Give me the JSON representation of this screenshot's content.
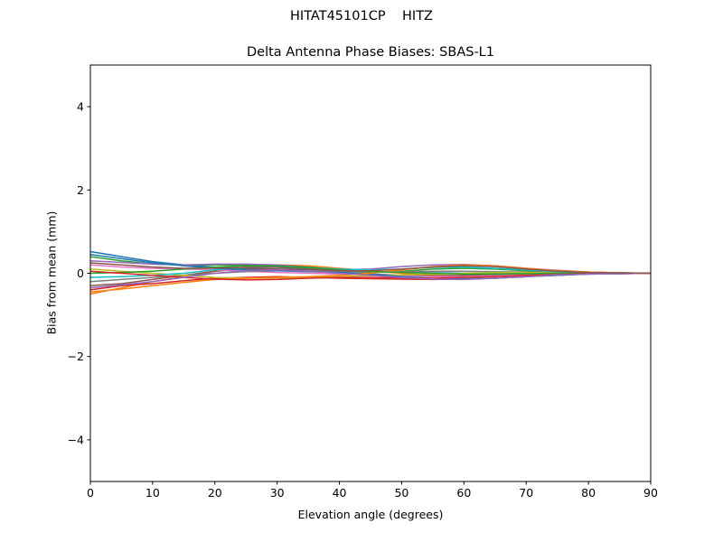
{
  "figure": {
    "suptitle": "HITAT45101CP    HITZ"
  },
  "chart_data": {
    "type": "line",
    "title": "Delta Antenna Phase Biases: SBAS-L1",
    "xlabel": "Elevation angle (degrees)",
    "ylabel": "Bias from mean (mm)",
    "xlim": [
      0,
      90
    ],
    "ylim": [
      -5,
      5
    ],
    "xticks": [
      0,
      10,
      20,
      30,
      40,
      50,
      60,
      70,
      80,
      90
    ],
    "yticks": [
      -4,
      -2,
      0,
      2,
      4
    ],
    "ytick_labels": [
      "−4",
      "−2",
      "0",
      "2",
      "4"
    ],
    "grid": false,
    "colors": [
      "#1f77b4",
      "#ff7f0e",
      "#2ca02c",
      "#d62728",
      "#9467bd",
      "#8c564b",
      "#e377c2",
      "#7f7f7f",
      "#bcbd22",
      "#17becf"
    ],
    "x": [
      0,
      5,
      10,
      15,
      20,
      25,
      30,
      35,
      40,
      45,
      50,
      55,
      60,
      65,
      70,
      75,
      80,
      85,
      90
    ],
    "series": [
      {
        "values": [
          0.52,
          0.4,
          0.28,
          0.2,
          0.15,
          0.12,
          0.1,
          0.08,
          0.05,
          0.03,
          0.02,
          0.01,
          0,
          0,
          0,
          0,
          0,
          0,
          0
        ]
      },
      {
        "values": [
          -0.5,
          -0.35,
          -0.2,
          -0.08,
          0.05,
          0.15,
          0.2,
          0.18,
          0.12,
          0.06,
          0,
          -0.05,
          -0.06,
          -0.05,
          -0.03,
          -0.02,
          -0.01,
          0,
          0
        ]
      },
      {
        "values": [
          0.4,
          0.3,
          0.22,
          0.2,
          0.2,
          0.2,
          0.18,
          0.12,
          0.05,
          0.02,
          0.05,
          0.1,
          0.12,
          0.1,
          0.06,
          0.03,
          0.01,
          0,
          0
        ]
      },
      {
        "values": [
          -0.4,
          -0.3,
          -0.25,
          -0.18,
          -0.12,
          -0.1,
          -0.08,
          -0.1,
          -0.12,
          -0.13,
          -0.14,
          -0.15,
          -0.14,
          -0.12,
          -0.08,
          -0.05,
          -0.02,
          -0.01,
          0
        ]
      },
      {
        "values": [
          0.3,
          0.26,
          0.22,
          0.2,
          0.22,
          0.22,
          0.2,
          0.15,
          0.08,
          0.1,
          0.16,
          0.2,
          0.21,
          0.18,
          0.12,
          0.07,
          0.03,
          0.01,
          0
        ]
      },
      {
        "values": [
          -0.3,
          -0.25,
          -0.15,
          -0.05,
          0.05,
          0.1,
          0.1,
          0.06,
          0.02,
          -0.02,
          -0.05,
          -0.06,
          -0.05,
          -0.03,
          -0.02,
          -0.01,
          0,
          0,
          0
        ]
      },
      {
        "values": [
          0.2,
          0.15,
          0.12,
          0.1,
          0.08,
          0.05,
          0.02,
          0,
          -0.02,
          -0.04,
          -0.06,
          -0.08,
          -0.08,
          -0.06,
          -0.04,
          -0.02,
          -0.01,
          0,
          0
        ]
      },
      {
        "values": [
          -0.2,
          -0.15,
          -0.1,
          -0.05,
          0,
          0.04,
          0.06,
          0.06,
          0.04,
          0.03,
          0.04,
          0.05,
          0.05,
          0.04,
          0.03,
          0.02,
          0.01,
          0,
          0
        ]
      },
      {
        "values": [
          0.1,
          0.05,
          0,
          -0.05,
          -0.1,
          -0.12,
          -0.12,
          -0.1,
          -0.08,
          -0.06,
          -0.04,
          -0.02,
          0,
          0.02,
          0.02,
          0.01,
          0.01,
          0,
          0
        ]
      },
      {
        "values": [
          -0.1,
          -0.08,
          -0.05,
          0,
          0.08,
          0.14,
          0.16,
          0.14,
          0.1,
          0.08,
          0.1,
          0.14,
          0.15,
          0.12,
          0.08,
          0.04,
          0.02,
          0.01,
          0
        ]
      },
      {
        "values": [
          0.45,
          0.35,
          0.25,
          0.18,
          0.12,
          0.08,
          0.06,
          0.04,
          0.02,
          -0.02,
          -0.08,
          -0.12,
          -0.13,
          -0.12,
          -0.08,
          -0.05,
          -0.02,
          -0.01,
          0
        ]
      },
      {
        "values": [
          -0.45,
          -0.38,
          -0.3,
          -0.22,
          -0.15,
          -0.12,
          -0.1,
          -0.08,
          -0.05,
          0,
          0.08,
          0.16,
          0.2,
          0.18,
          0.12,
          0.06,
          0.03,
          0.01,
          0
        ]
      },
      {
        "values": [
          0,
          0.02,
          0.05,
          0.1,
          0.15,
          0.18,
          0.18,
          0.14,
          0.08,
          0.04,
          0.02,
          0,
          -0.02,
          -0.02,
          -0.01,
          0,
          0,
          0,
          0
        ]
      },
      {
        "values": [
          0.05,
          0,
          -0.05,
          -0.1,
          -0.14,
          -0.16,
          -0.15,
          -0.12,
          -0.1,
          -0.1,
          -0.11,
          -0.12,
          -0.1,
          -0.08,
          -0.05,
          -0.03,
          -0.01,
          0,
          0
        ]
      },
      {
        "values": [
          -0.35,
          -0.28,
          -0.2,
          -0.1,
          0,
          0.06,
          0.08,
          0.05,
          0,
          -0.05,
          -0.1,
          -0.14,
          -0.15,
          -0.12,
          -0.08,
          -0.04,
          -0.02,
          -0.01,
          0
        ]
      },
      {
        "values": [
          0.25,
          0.2,
          0.15,
          0.12,
          0.12,
          0.14,
          0.14,
          0.1,
          0.06,
          0.06,
          0.1,
          0.15,
          0.18,
          0.16,
          0.1,
          0.05,
          0.02,
          0.01,
          0
        ]
      }
    ]
  }
}
